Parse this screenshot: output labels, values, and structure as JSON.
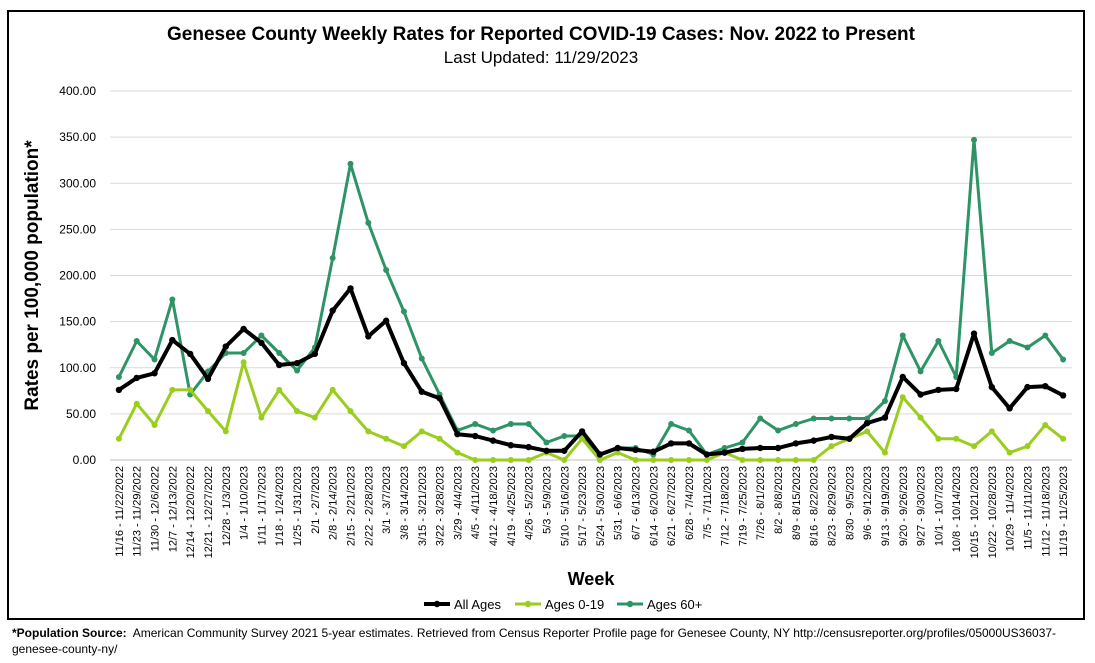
{
  "colors": {
    "all_ages": "#000000",
    "ages_0_19": "#9ACD1E",
    "ages_60_plus": "#2E9466",
    "grid": "#D9D9D9"
  },
  "chart_data": {
    "type": "line",
    "title": "Genesee County Weekly Rates for Reported COVID-19 Cases: Nov. 2022 to Present",
    "subtitle": "Last Updated: 11/29/2023",
    "xlabel": "Week",
    "ylabel": "Rates per 100,000 population*",
    "ylim": [
      0,
      400
    ],
    "yticks": [
      "0.00",
      "50.00",
      "100.00",
      "150.00",
      "200.00",
      "250.00",
      "300.00",
      "350.00",
      "400.00"
    ],
    "grid": "horizontal",
    "legend_position": "bottom",
    "categories": [
      "11/16 - 11/22/2022",
      "11/23 - 11/29/2022",
      "11/30 - 12/6/2022",
      "12/7 - 12/13/2022",
      "12/14 - 12/20/2022",
      "12/21 - 12/27/2022",
      "12/28 - 1/3/2023",
      "1/4 - 1/10/2023",
      "1/11 - 1/17/2023",
      "1/18 - 1/24/2023",
      "1/25 - 1/31/2023",
      "2/1 - 2/7/2023",
      "2/8 - 2/14/2023",
      "2/15 - 2/21/2023",
      "2/22 - 2/28/2023",
      "3/1 - 3/7/2023",
      "3/8 - 3/14/2023",
      "3/15 - 3/21/2023",
      "3/22 - 3/28/2023",
      "3/29 - 4/4/2023",
      "4/5 - 4/11/2023",
      "4/12 - 4/18/2023",
      "4/19 - 4/25/2023",
      "4/26 - 5/2/2023",
      "5/3 - 5/9/2023",
      "5/10 - 5/16/2023",
      "5/17 - 5/23/2023",
      "5/24 - 5/30/2023",
      "5/31 - 6/6/2023",
      "6/7 - 6/13/2023",
      "6/14 - 6/20/2023",
      "6/21 - 6/27/2023",
      "6/28 - 7/4/2023",
      "7/5 - 7/11/2023",
      "7/12 - 7/18/2023",
      "7/19 - 7/25/2023",
      "7/26 - 8/1/2023",
      "8/2 - 8/8/2023",
      "8/9 - 8/15/2023",
      "8/16 - 8/22/2023",
      "8/23 - 8/29/2023",
      "8/30 - 9/5/2023",
      "9/6 - 9/12/2023",
      "9/13 - 9/19/2023",
      "9/20 - 9/26/2023",
      "9/27 - 9/30/2023",
      "10/1 - 10/7/2023",
      "10/8 - 10/14/2023",
      "10/15 - 10/21/2023",
      "10/22 - 10/28/2023",
      "10/29 - 11/4/2023",
      "11/5 - 11/11/2023",
      "11/12 - 11/18/2023",
      "11/19 - 11/25/2023"
    ],
    "series": [
      {
        "name": "All Ages",
        "color": "#000000",
        "values": [
          76,
          89,
          94,
          130,
          115,
          88,
          123,
          142,
          127,
          103,
          105,
          115,
          162,
          186,
          134,
          151,
          105,
          74,
          67,
          28,
          26,
          21,
          16,
          14,
          10,
          10,
          31,
          6,
          13,
          11,
          9,
          18,
          18,
          6,
          8,
          12,
          13,
          13,
          18,
          21,
          25,
          23,
          40,
          46,
          90,
          71,
          76,
          77,
          137,
          79,
          56,
          79,
          80,
          70
        ]
      },
      {
        "name": "Ages 0-19",
        "color": "#9ACD1E",
        "values": [
          23,
          61,
          38,
          76,
          76,
          53,
          31,
          106,
          46,
          76,
          53,
          46,
          76,
          53,
          31,
          23,
          15,
          31,
          23,
          8,
          0,
          0,
          0,
          0,
          8,
          0,
          23,
          0,
          8,
          0,
          0,
          0,
          0,
          0,
          8,
          0,
          0,
          0,
          0,
          0,
          15,
          23,
          31,
          8,
          68,
          46,
          23,
          23,
          15,
          31,
          8,
          15,
          38,
          23
        ]
      },
      {
        "name": "Ages 60+",
        "color": "#2E9466",
        "values": [
          90,
          129,
          109,
          174,
          71,
          96,
          116,
          116,
          135,
          116,
          97,
          122,
          219,
          321,
          257,
          206,
          161,
          110,
          71,
          32,
          39,
          32,
          39,
          39,
          19,
          26,
          26,
          6,
          13,
          13,
          6,
          39,
          32,
          6,
          13,
          19,
          45,
          32,
          39,
          45,
          45,
          45,
          45,
          64,
          135,
          96,
          129,
          90,
          347,
          116,
          129,
          122,
          135,
          109
        ]
      }
    ]
  },
  "footnote": {
    "label": "*Population Source:",
    "text": "American Community Survey 2021 5-year estimates. Retrieved from Census Reporter Profile page for Genesee County, NY http://censusreporter.org/profiles/05000US36037-genesee-county-ny/"
  }
}
